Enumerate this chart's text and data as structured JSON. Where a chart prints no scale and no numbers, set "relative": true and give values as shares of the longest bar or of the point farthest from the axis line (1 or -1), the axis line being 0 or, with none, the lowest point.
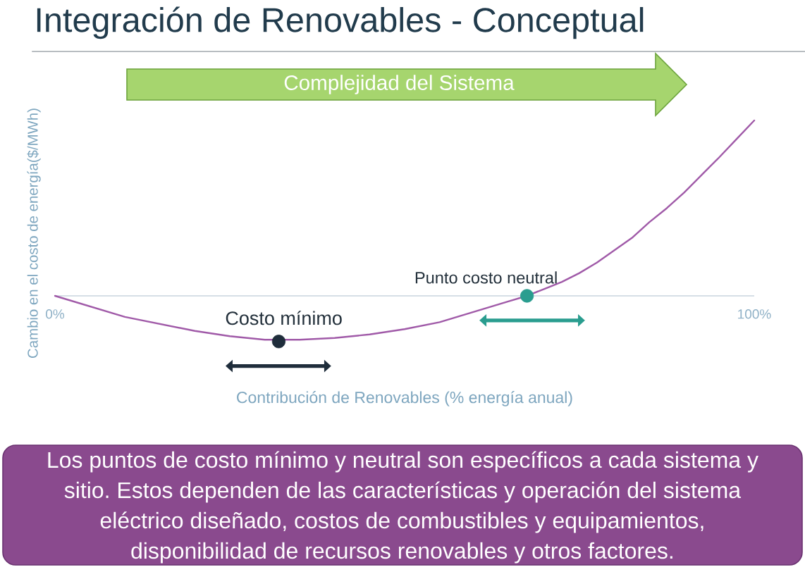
{
  "chart_data": {
    "type": "line",
    "title": "Integración de Renovables - Conceptual",
    "xlabel": "Contribución de Renovables (% energía anual)",
    "ylabel": "Cambio en el costo de energía($/MWh)",
    "relative": true,
    "xlim": [
      0,
      100
    ],
    "xticks": [
      {
        "value": 0,
        "label": "0%"
      },
      {
        "value": 100,
        "label": "100%"
      }
    ],
    "series": [
      {
        "color": "#a05aa8",
        "x": [
          0,
          5,
          10,
          15,
          20,
          25,
          30,
          35,
          40,
          45,
          50,
          55,
          60,
          62.5,
          65,
          67.5,
          70,
          72.5,
          75,
          77.5,
          80,
          82.5,
          85,
          87.5,
          90,
          92.5,
          95,
          97.5,
          100
        ],
        "values": [
          0,
          -0.06,
          -0.12,
          -0.16,
          -0.2,
          -0.23,
          -0.25,
          -0.25,
          -0.24,
          -0.22,
          -0.19,
          -0.15,
          -0.09,
          -0.06,
          -0.03,
          0,
          0.04,
          0.08,
          0.13,
          0.19,
          0.26,
          0.33,
          0.42,
          0.5,
          0.59,
          0.69,
          0.79,
          0.895,
          1
        ]
      },
      {
        "type": "scatter",
        "name": "Costo mínimo",
        "color": "#1f2d3b",
        "marker": "circle",
        "x": [
          32
        ],
        "values": [
          -0.26
        ]
      },
      {
        "type": "scatter",
        "name": "Punto costo neutral",
        "color": "#2a9d8f",
        "marker": "circle",
        "x": [
          67.5
        ],
        "values": [
          0
        ]
      },
      {
        "color": "#1f2d3b",
        "marker": "triangle",
        "x": [
          25.4,
          38.5
        ],
        "values": [
          -0.4,
          -0.4
        ]
      },
      {
        "color": "#2a9d8f",
        "marker": "triangle",
        "x": [
          61.7,
          74.8
        ],
        "values": [
          -0.14,
          -0.14
        ]
      }
    ],
    "annotations": [
      "Complejidad del Sistema",
      "Los puntos de costo mínimo y neutral son específicos a cada sistema y sitio. Estos dependen de las características y operación del sistema eléctrico diseñado, costos de combustibles y equipamientos, disponibilidad de recursos renovables y otros factores."
    ]
  }
}
